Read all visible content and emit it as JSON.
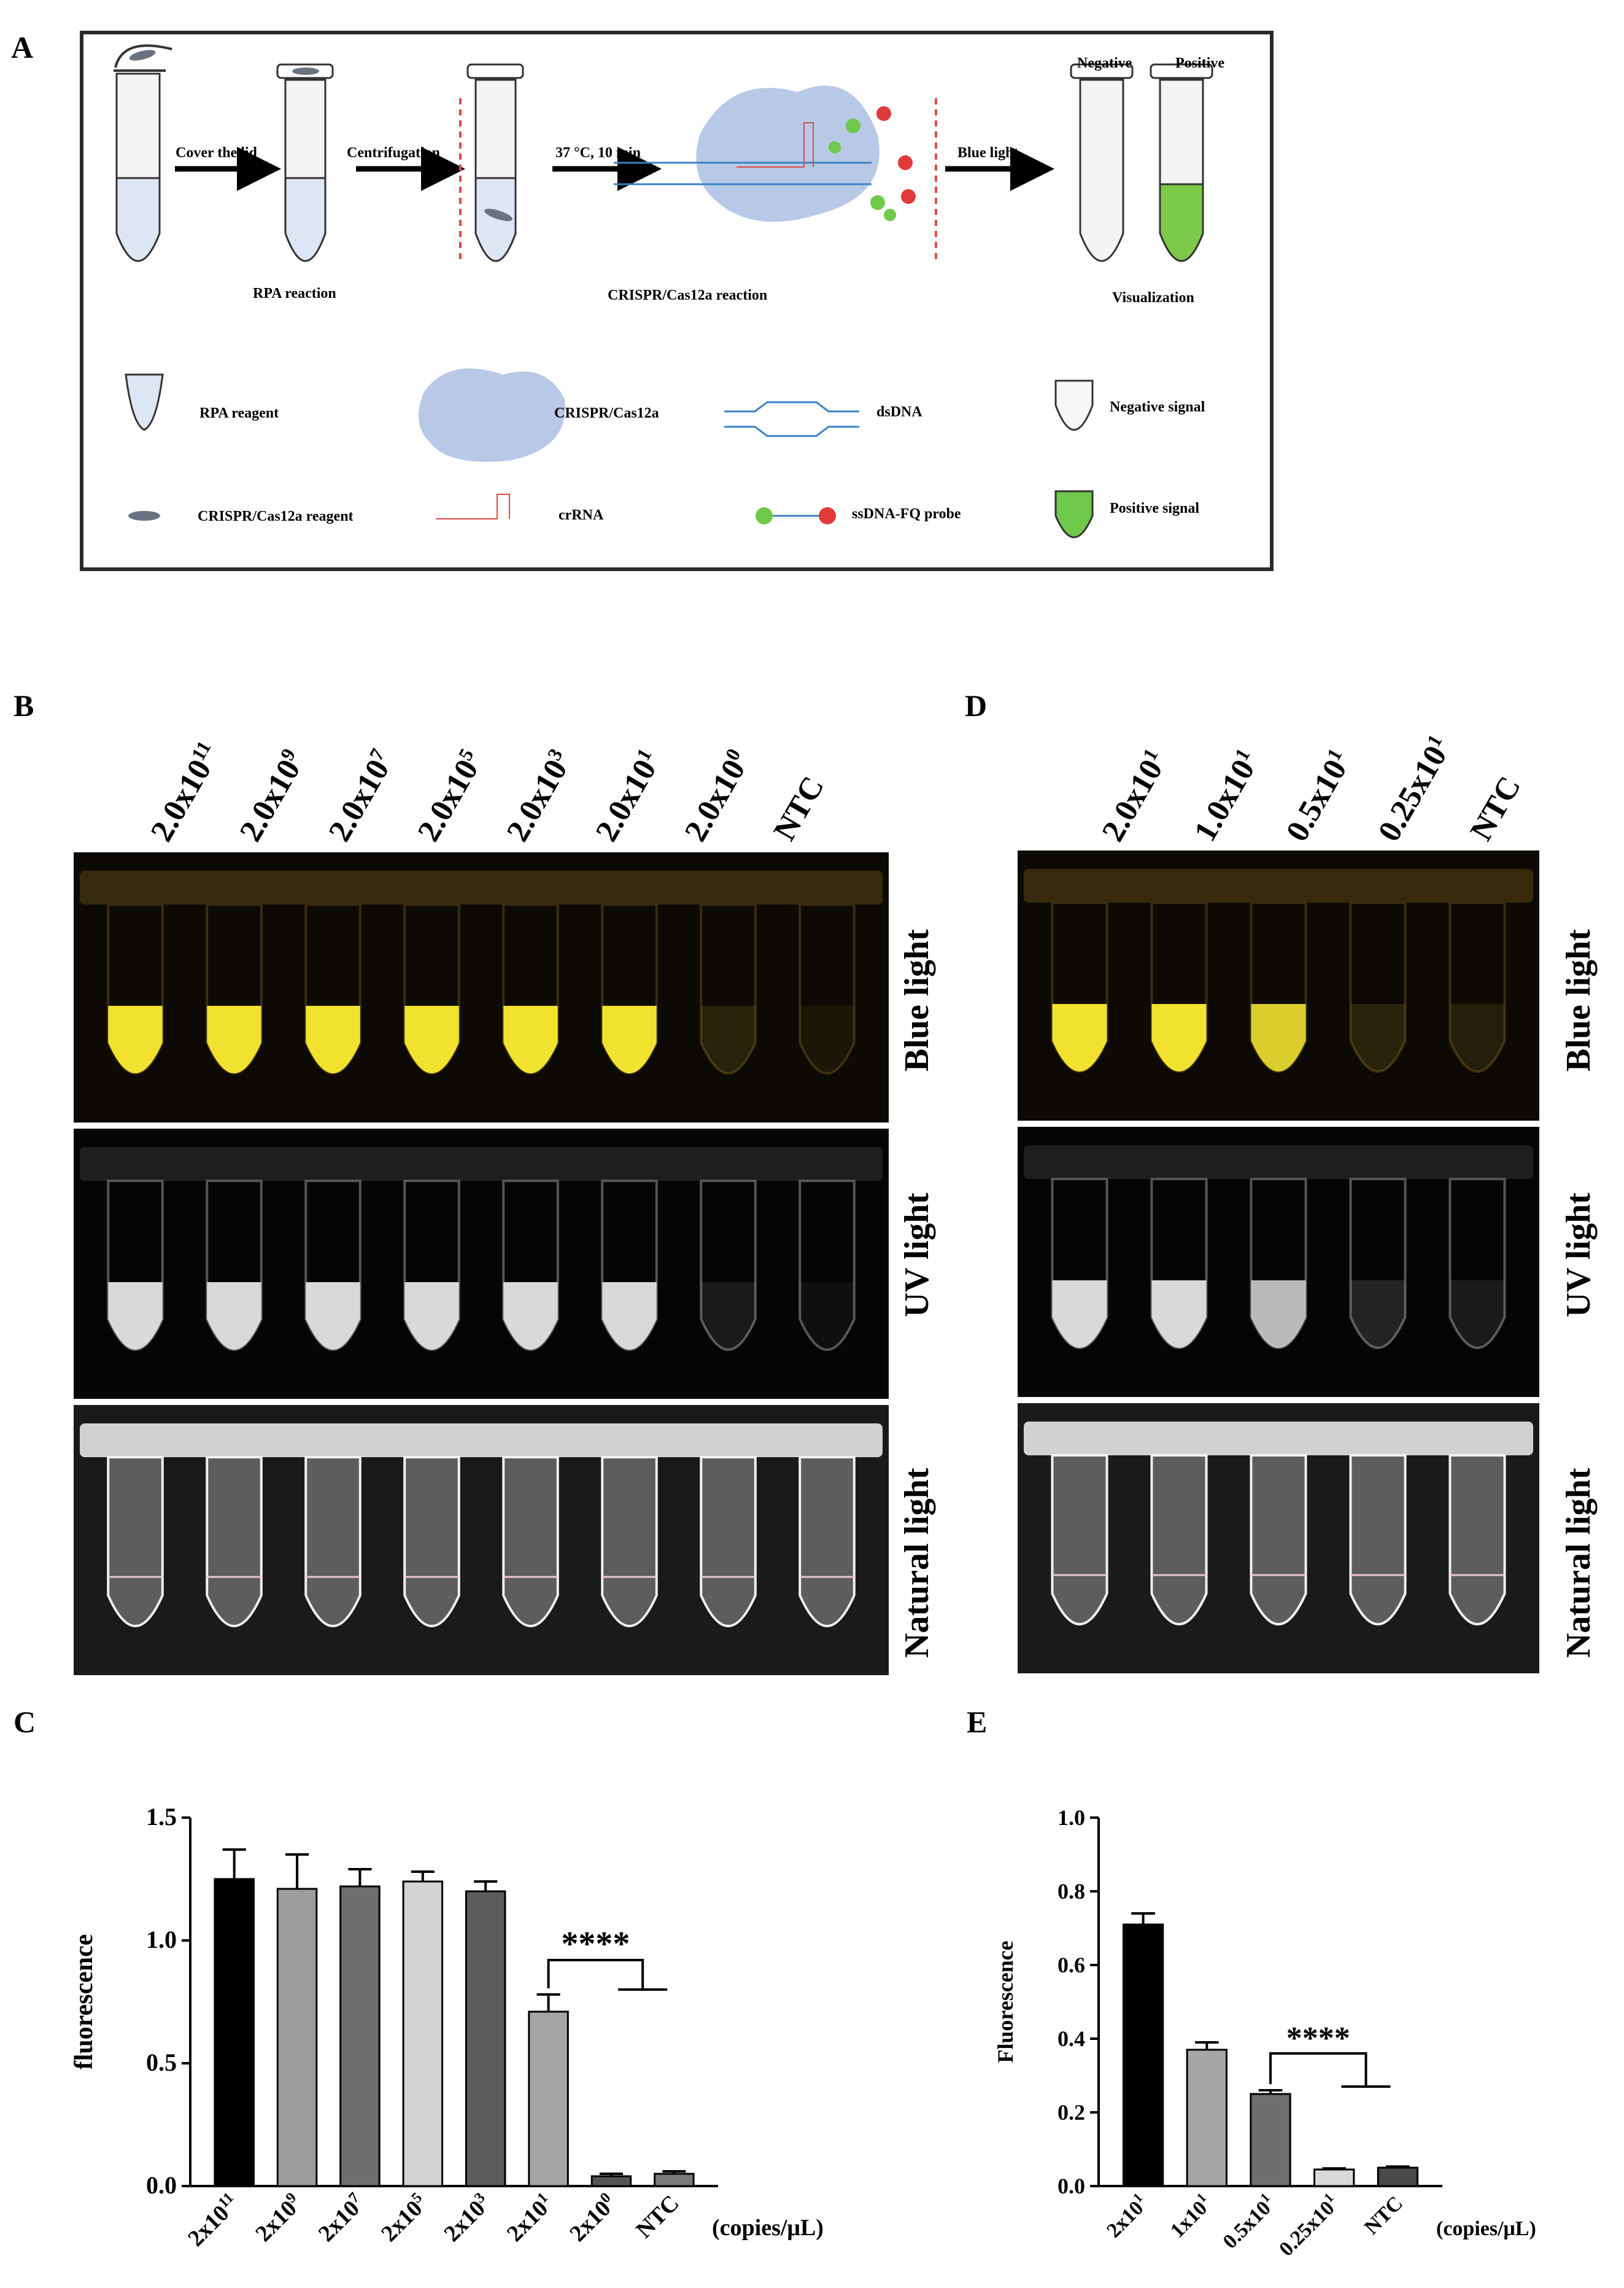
{
  "panels": {
    "A": "A",
    "B": "B",
    "C": "C",
    "D": "D",
    "E": "E"
  },
  "scheme": {
    "cover_lid": "Cover the lid",
    "centrifugation": "Centrifugation",
    "incubation": "37 °C, 10 min",
    "blue_light": "Blue light",
    "rpa_reaction": "RPA  reaction",
    "cas_reaction": "CRISPR/Cas12a reaction",
    "negative": "Negative",
    "positive": "Positive",
    "visualization": "Visualization",
    "legend": {
      "rpa_reagent": "RPA reagent",
      "cas12a": "CRISPR/Cas12a",
      "dsdna": "dsDNA",
      "negative_signal": "Negative signal",
      "cas_reagent": "CRISPR/Cas12a reagent",
      "crrna": "crRNA",
      "probe": "ssDNA-FQ probe",
      "positive_signal": "Positive signal"
    },
    "colors": {
      "tube_fill": "#dce6f5",
      "cas12a": "#b7c9e6",
      "positive": "#7dc94a",
      "dashed_line": "#e04848",
      "probe_f": "#6fc94a",
      "probe_q": "#e03a3a"
    }
  },
  "panel_B": {
    "columns": [
      {
        "base": "2.0x10",
        "exp": "11"
      },
      {
        "base": "2.0x10",
        "exp": "9"
      },
      {
        "base": "2.0x10",
        "exp": "7"
      },
      {
        "base": "2.0x10",
        "exp": "5"
      },
      {
        "base": "2.0x10",
        "exp": "3"
      },
      {
        "base": "2.0x10",
        "exp": "1"
      },
      {
        "base": "2.0x10",
        "exp": "0"
      },
      {
        "base": "NTC",
        "exp": ""
      }
    ],
    "blue_signal": [
      1,
      1,
      1,
      1,
      1,
      1,
      0.12,
      0.06
    ],
    "uv_signal": [
      1,
      1,
      1,
      1,
      1,
      1,
      0.1,
      0.05
    ],
    "rows": {
      "blue": "Blue light",
      "uv": "UV light",
      "natural": "Natural  light"
    }
  },
  "panel_D": {
    "columns": [
      {
        "base": "2.0x10",
        "exp": "1"
      },
      {
        "base": "1.0x10",
        "exp": "1"
      },
      {
        "base": "0.5x10",
        "exp": "1"
      },
      {
        "base": "0.25x10",
        "exp": "1"
      },
      {
        "base": "NTC",
        "exp": ""
      }
    ],
    "blue_signal": [
      1,
      1,
      0.9,
      0.12,
      0.1
    ],
    "uv_signal": [
      1,
      1,
      0.85,
      0.15,
      0.1
    ],
    "rows": {
      "blue": "Blue light",
      "uv": "UV light",
      "natural": "Natural  light"
    }
  },
  "chart_data": [
    {
      "type": "bar",
      "panel": "C",
      "categories": [
        {
          "base": "2x10",
          "exp": "11"
        },
        {
          "base": "2x10",
          "exp": "9"
        },
        {
          "base": "2x10",
          "exp": "7"
        },
        {
          "base": "2x10",
          "exp": "5"
        },
        {
          "base": "2x10",
          "exp": "3"
        },
        {
          "base": "2x10",
          "exp": "1"
        },
        {
          "base": "2x10",
          "exp": "0"
        },
        {
          "base": "NTC",
          "exp": ""
        }
      ],
      "values": [
        1.25,
        1.21,
        1.22,
        1.24,
        1.2,
        0.71,
        0.04,
        0.05
      ],
      "errors": [
        0.12,
        0.14,
        0.07,
        0.04,
        0.04,
        0.07,
        0.01,
        0.01
      ],
      "colors": [
        "#000000",
        "#9d9d9d",
        "#6e6e6e",
        "#d3d3d3",
        "#5c5c5c",
        "#a6a6a6",
        "#555555",
        "#7a7a7a"
      ],
      "ylabel": "fluorescence",
      "xlabel": "(copies/μL)",
      "ylim": [
        0,
        1.5
      ],
      "yticks": [
        "0.0",
        "0.5",
        "1.0",
        "1.5"
      ],
      "significance": "****"
    },
    {
      "type": "bar",
      "panel": "E",
      "categories": [
        {
          "base": "2x10",
          "exp": "1"
        },
        {
          "base": "1x10",
          "exp": "1"
        },
        {
          "base": "0.5x10",
          "exp": "1"
        },
        {
          "base": "0.25x10",
          "exp": "1"
        },
        {
          "base": "NTC",
          "exp": ""
        }
      ],
      "values": [
        0.71,
        0.37,
        0.25,
        0.045,
        0.05
      ],
      "errors": [
        0.03,
        0.02,
        0.01,
        0.003,
        0.003
      ],
      "colors": [
        "#000000",
        "#a6a6a6",
        "#6e6e6e",
        "#d9d9d9",
        "#4a4a4a"
      ],
      "ylabel": "Fluorescence",
      "xlabel": "(copies/μL)",
      "ylim": [
        0,
        1.0
      ],
      "yticks": [
        "0.0",
        "0.2",
        "0.4",
        "0.6",
        "0.8",
        "1.0"
      ],
      "significance": "****"
    }
  ]
}
